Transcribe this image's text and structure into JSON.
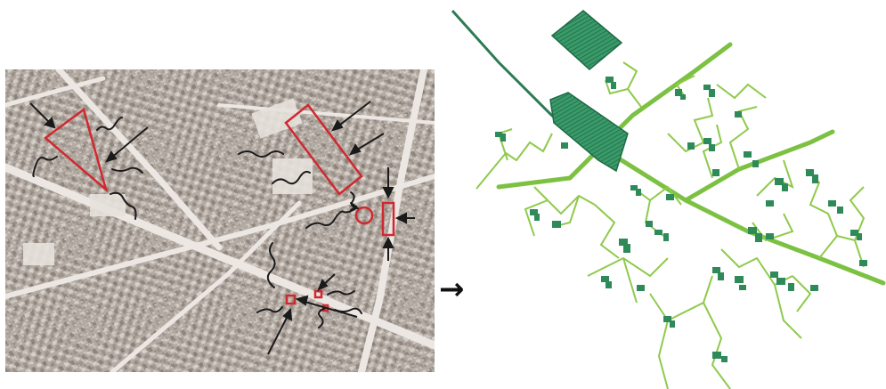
{
  "figure": {
    "transition_arrow": "→"
  },
  "colors": {
    "aerial_base": "#b3aaa2",
    "aerial_block_light": "#d4cec8",
    "aerial_block_dark": "#8a817a",
    "aerial_road": "#ece7e2",
    "annotation_red": "#d0282e",
    "annotation_black": "#1a1a1a",
    "network_green": "#7cc142",
    "network_green_light": "#9bd05a",
    "building_green": "#2f8a5a",
    "building_green_dark": "#1e6b44",
    "main_road_dark": "#2e7a56"
  },
  "icons": {
    "transition": "right-arrow-icon"
  }
}
